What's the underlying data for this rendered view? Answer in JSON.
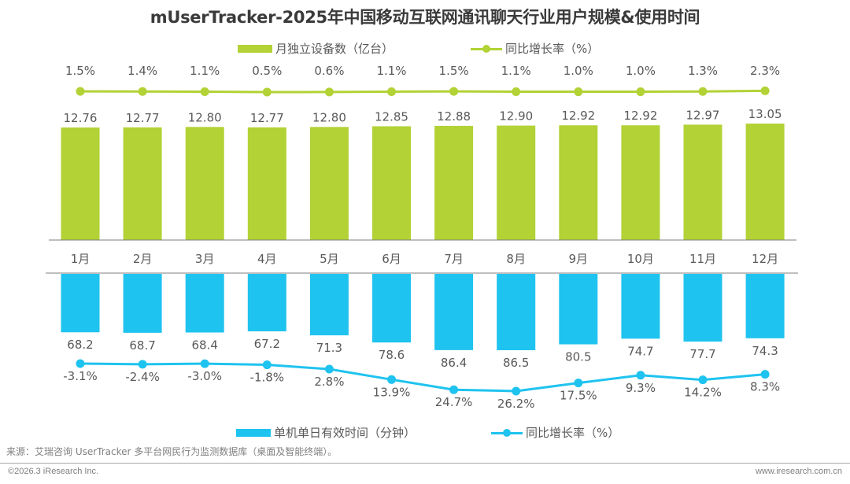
{
  "chart_data": [
    {
      "type": "bar",
      "title": "mUserTracker-2025年中国移动互联网通讯聊天行业用户规模&使用时间",
      "categories": [
        "1月",
        "2月",
        "3月",
        "4月",
        "5月",
        "6月",
        "7月",
        "8月",
        "9月",
        "10月",
        "11月",
        "12月"
      ],
      "series": [
        {
          "name": "月独立设备数（亿台）",
          "type": "bar",
          "color": "#b2d235",
          "values": [
            12.76,
            12.77,
            12.8,
            12.77,
            12.8,
            12.85,
            12.88,
            12.9,
            12.92,
            12.92,
            12.97,
            13.05
          ],
          "labels": [
            "12.76",
            "12.77",
            "12.80",
            "12.77",
            "12.80",
            "12.85",
            "12.88",
            "12.90",
            "12.92",
            "12.92",
            "12.97",
            "13.05"
          ]
        },
        {
          "name": "同比增长率（%）",
          "type": "line",
          "color": "#b2d235",
          "values": [
            1.5,
            1.4,
            1.1,
            0.5,
            0.6,
            1.1,
            1.5,
            1.1,
            1.0,
            1.0,
            1.3,
            2.3
          ],
          "labels": [
            "1.5%",
            "1.4%",
            "1.1%",
            "0.5%",
            "0.6%",
            "1.1%",
            "1.5%",
            "1.1%",
            "1.0%",
            "1.0%",
            "1.3%",
            "2.3%"
          ]
        }
      ],
      "legend_position": "top",
      "grid": false
    },
    {
      "type": "bar",
      "categories": [
        "1月",
        "2月",
        "3月",
        "4月",
        "5月",
        "6月",
        "7月",
        "8月",
        "9月",
        "10月",
        "11月",
        "12月"
      ],
      "series": [
        {
          "name": "单机单日有效时间（分钟）",
          "type": "bar",
          "color": "#1fc3ef",
          "values": [
            68.2,
            68.7,
            68.4,
            67.2,
            71.3,
            78.6,
            86.4,
            86.5,
            80.5,
            74.7,
            77.7,
            74.3
          ],
          "labels": [
            "68.2",
            "68.7",
            "68.4",
            "67.2",
            "71.3",
            "78.6",
            "86.4",
            "86.5",
            "80.5",
            "74.7",
            "77.7",
            "74.3"
          ]
        },
        {
          "name": "同比增长率（%）",
          "type": "line",
          "color": "#1fc3ef",
          "values": [
            -3.1,
            -2.4,
            -3.0,
            -1.8,
            2.8,
            13.9,
            24.7,
            26.2,
            17.5,
            9.3,
            14.2,
            8.3
          ],
          "labels": [
            "-3.1%",
            "-2.4%",
            "-3.0%",
            "-1.8%",
            "2.8%",
            "13.9%",
            "24.7%",
            "26.2%",
            "17.5%",
            "9.3%",
            "14.2%",
            "8.3%"
          ]
        }
      ],
      "legend_position": "bottom",
      "grid": false,
      "orientation": "downward"
    }
  ],
  "header": {
    "title": "mUserTracker-2025年中国移动互联网通讯聊天行业用户规模&使用时间"
  },
  "legend_top": {
    "bar_label": "月独立设备数（亿台）",
    "line_label": "同比增长率（%）"
  },
  "legend_bottom": {
    "bar_label": "单机单日有效时间（分钟）",
    "line_label": "同比增长率（%）"
  },
  "colors": {
    "green": "#b2d235",
    "blue": "#1fc3ef",
    "axis": "#7f7f7f",
    "text": "#595959"
  },
  "footer": {
    "source": "来源：艾瑞咨询 UserTracker 多平台网民行为监测数据库（桌面及智能终端）。",
    "copyright": "©2026.3 iResearch Inc.",
    "website": "www.iresearch.com.cn"
  }
}
